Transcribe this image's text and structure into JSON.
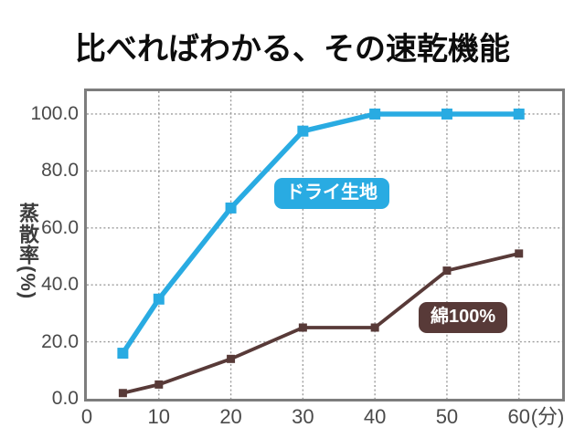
{
  "title": "比べればわかる、その速乾機能",
  "chart_data": {
    "type": "line",
    "title": "比べればわかる、その速乾機能",
    "xlabel": "",
    "x_unit": "(分)",
    "ylabel": "蒸散率(%)",
    "xlim": [
      0,
      66
    ],
    "ylim": [
      0,
      108
    ],
    "grid": "dotted",
    "legend_position": "inline-badges",
    "x_ticks": [
      {
        "value": 0,
        "label": "0"
      },
      {
        "value": 10,
        "label": "10"
      },
      {
        "value": 20,
        "label": "20"
      },
      {
        "value": 30,
        "label": "30"
      },
      {
        "value": 40,
        "label": "40"
      },
      {
        "value": 50,
        "label": "50"
      },
      {
        "value": 60,
        "label": "60"
      }
    ],
    "y_ticks": [
      {
        "value": 0,
        "label": "0.0"
      },
      {
        "value": 20,
        "label": "20.0"
      },
      {
        "value": 40,
        "label": "40.0"
      },
      {
        "value": 60,
        "label": "60.0"
      },
      {
        "value": 80,
        "label": "80.0"
      },
      {
        "value": 100,
        "label": "100.0"
      }
    ],
    "series": [
      {
        "name": "ドライ生地",
        "color": "#29abe2",
        "marker": "square",
        "x": [
          5,
          10,
          20,
          30,
          40,
          50,
          60
        ],
        "values": [
          16,
          35,
          67,
          94,
          100,
          100,
          100
        ]
      },
      {
        "name": "綿100%",
        "color": "#583a38",
        "marker": "square",
        "x": [
          5,
          10,
          20,
          30,
          40,
          50,
          60
        ],
        "values": [
          2,
          5,
          14,
          25,
          25,
          45,
          51
        ]
      }
    ]
  },
  "colors": {
    "background": "#ffffff",
    "axis_border": "#7d7d7d",
    "gridline": "#9c9c9c",
    "tick_text": "#4a4a4a",
    "title_text": "#0d0d0d"
  }
}
